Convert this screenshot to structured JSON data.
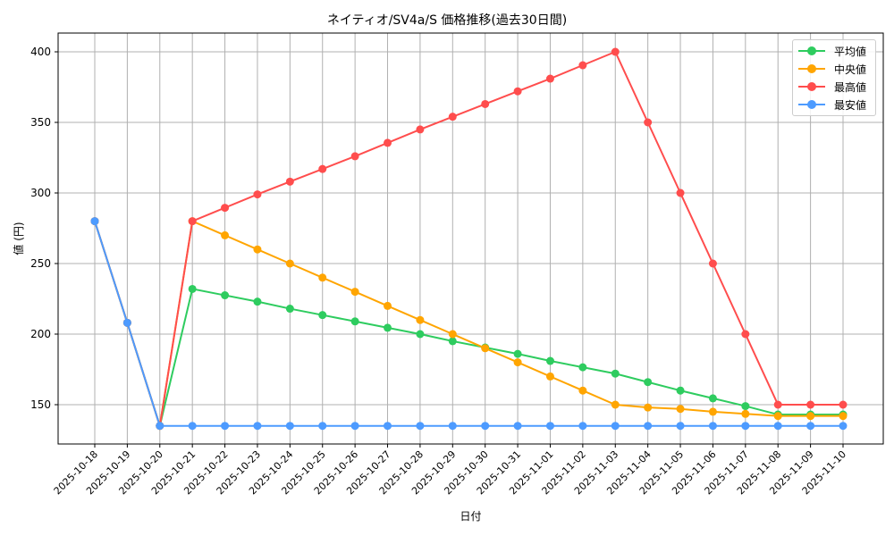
{
  "chart_data": {
    "type": "line",
    "title": "ネイティオ/SV4a/S 価格推移(過去30日間)",
    "xlabel": "日付",
    "ylabel": "値 (円)",
    "ylim": [
      120,
      413
    ],
    "yticks": [
      150,
      200,
      250,
      300,
      350,
      400
    ],
    "grid": true,
    "legend_position": "upper right",
    "categories": [
      "2025-10-18",
      "2025-10-19",
      "2025-10-20",
      "2025-10-21",
      "2025-10-22",
      "2025-10-23",
      "2025-10-24",
      "2025-10-25",
      "2025-10-26",
      "2025-10-27",
      "2025-10-28",
      "2025-10-29",
      "2025-10-30",
      "2025-10-31",
      "2025-11-01",
      "2025-11-02",
      "2025-11-03",
      "2025-11-04",
      "2025-11-05",
      "2025-11-06",
      "2025-11-07",
      "2025-11-08",
      "2025-11-09",
      "2025-11-10"
    ],
    "series": [
      {
        "name": "平均値",
        "color": "#2ecc5f",
        "values": [
          280,
          208,
          135,
          232,
          227.5,
          223,
          218,
          213.5,
          209,
          204.5,
          200,
          195,
          190.5,
          186,
          181,
          176.5,
          172,
          166,
          160,
          154.5,
          149,
          143,
          143,
          143
        ]
      },
      {
        "name": "中央値",
        "color": "#ffa500",
        "values": [
          280,
          208,
          135,
          280,
          270,
          260,
          250,
          240,
          230,
          220,
          210,
          200,
          190,
          180,
          170,
          160,
          150,
          148,
          147,
          145,
          143.5,
          142,
          142,
          142
        ]
      },
      {
        "name": "最高値",
        "color": "#ff4d4d",
        "values": [
          280,
          208,
          135,
          280,
          289.5,
          299,
          308,
          317,
          326,
          335.5,
          345,
          354,
          363,
          372,
          381,
          390.5,
          400,
          350,
          300,
          250,
          200,
          150,
          150,
          150
        ]
      },
      {
        "name": "最安値",
        "color": "#4d9bff",
        "values": [
          280,
          208,
          135,
          135,
          135,
          135,
          135,
          135,
          135,
          135,
          135,
          135,
          135,
          135,
          135,
          135,
          135,
          135,
          135,
          135,
          135,
          135,
          135,
          135
        ]
      }
    ]
  }
}
